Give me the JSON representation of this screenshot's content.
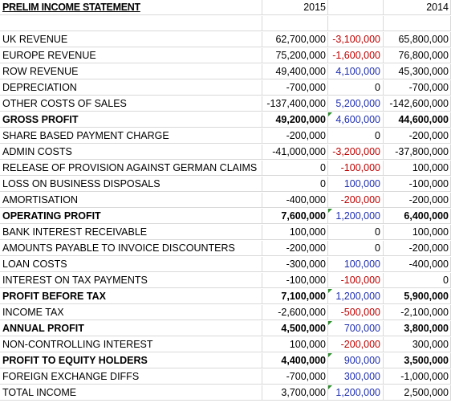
{
  "header": {
    "title": "PRELIM INCOME STATEMENT",
    "col_2015": "2015",
    "col_2014": "2014"
  },
  "rows": [
    {
      "label": "UK REVENUE",
      "v2015": "62,700,000",
      "diff": "-3,100,000",
      "dtype": "neg",
      "v2014": "65,800,000",
      "bold": false,
      "marker": false
    },
    {
      "label": "EUROPE REVENUE",
      "v2015": "75,200,000",
      "diff": "-1,600,000",
      "dtype": "neg",
      "v2014": "76,800,000",
      "bold": false,
      "marker": false
    },
    {
      "label": "ROW REVENUE",
      "v2015": "49,400,000",
      "diff": "4,100,000",
      "dtype": "pos",
      "v2014": "45,300,000",
      "bold": false,
      "marker": false
    },
    {
      "label": "DEPRECIATION",
      "v2015": "-700,000",
      "diff": "0",
      "dtype": "zero",
      "v2014": "-700,000",
      "bold": false,
      "marker": false
    },
    {
      "label": "OTHER COSTS OF SALES",
      "v2015": "-137,400,000",
      "diff": "5,200,000",
      "dtype": "pos",
      "v2014": "-142,600,000",
      "bold": false,
      "marker": false
    },
    {
      "label": "GROSS PROFIT",
      "v2015": "49,200,000",
      "diff": "4,600,000",
      "dtype": "pos",
      "v2014": "44,600,000",
      "bold": true,
      "marker": true
    },
    {
      "label": "SHARE BASED PAYMENT CHARGE",
      "v2015": "-200,000",
      "diff": "0",
      "dtype": "zero",
      "v2014": "-200,000",
      "bold": false,
      "marker": false
    },
    {
      "label": "ADMIN COSTS",
      "v2015": "-41,000,000",
      "diff": "-3,200,000",
      "dtype": "neg",
      "v2014": "-37,800,000",
      "bold": false,
      "marker": false
    },
    {
      "label": "RELEASE OF PROVISION AGAINST GERMAN CLAIMS",
      "v2015": "0",
      "diff": "-100,000",
      "dtype": "neg",
      "v2014": "100,000",
      "bold": false,
      "marker": false
    },
    {
      "label": "LOSS ON BUSINESS DISPOSALS",
      "v2015": "0",
      "diff": "100,000",
      "dtype": "pos",
      "v2014": "-100,000",
      "bold": false,
      "marker": false
    },
    {
      "label": "AMORTISATION",
      "v2015": "-400,000",
      "diff": "-200,000",
      "dtype": "neg",
      "v2014": "-200,000",
      "bold": false,
      "marker": false
    },
    {
      "label": "OPERATING PROFIT",
      "v2015": "7,600,000",
      "diff": "1,200,000",
      "dtype": "pos",
      "v2014": "6,400,000",
      "bold": true,
      "marker": true
    },
    {
      "label": "BANK INTEREST RECEIVABLE",
      "v2015": "100,000",
      "diff": "0",
      "dtype": "zero",
      "v2014": "100,000",
      "bold": false,
      "marker": false
    },
    {
      "label": "AMOUNTS PAYABLE TO INVOICE DISCOUNTERS",
      "v2015": "-200,000",
      "diff": "0",
      "dtype": "zero",
      "v2014": "-200,000",
      "bold": false,
      "marker": false
    },
    {
      "label": "LOAN COSTS",
      "v2015": "-300,000",
      "diff": "100,000",
      "dtype": "pos",
      "v2014": "-400,000",
      "bold": false,
      "marker": false
    },
    {
      "label": "INTEREST ON TAX PAYMENTS",
      "v2015": "-100,000",
      "diff": "-100,000",
      "dtype": "neg",
      "v2014": "0",
      "bold": false,
      "marker": false
    },
    {
      "label": "PROFIT BEFORE TAX",
      "v2015": "7,100,000",
      "diff": "1,200,000",
      "dtype": "pos",
      "v2014": "5,900,000",
      "bold": true,
      "marker": true
    },
    {
      "label": "INCOME TAX",
      "v2015": "-2,600,000",
      "diff": "-500,000",
      "dtype": "neg",
      "v2014": "-2,100,000",
      "bold": false,
      "marker": false
    },
    {
      "label": "ANNUAL PROFIT",
      "v2015": "4,500,000",
      "diff": "700,000",
      "dtype": "pos",
      "v2014": "3,800,000",
      "bold": true,
      "marker": true
    },
    {
      "label": "NON-CONTROLLING INTEREST",
      "v2015": "100,000",
      "diff": "-200,000",
      "dtype": "neg",
      "v2014": "300,000",
      "bold": false,
      "marker": false
    },
    {
      "label": "PROFIT TO EQUITY HOLDERS",
      "v2015": "4,400,000",
      "diff": "900,000",
      "dtype": "pos",
      "v2014": "3,500,000",
      "bold": true,
      "marker": true
    },
    {
      "label": "FOREIGN EXCHANGE DIFFS",
      "v2015": "-700,000",
      "diff": "300,000",
      "dtype": "pos",
      "v2014": "-1,000,000",
      "bold": false,
      "marker": false
    },
    {
      "label": "TOTAL INCOME",
      "v2015": "3,700,000",
      "diff": "1,200,000",
      "dtype": "pos",
      "v2014": "2,500,000",
      "bold": false,
      "marker": true
    }
  ],
  "colors": {
    "negative": "#c00000",
    "positive": "#1f2fb0",
    "gridline": "#d9d9d9",
    "comment_marker": "#2e8b2e"
  }
}
